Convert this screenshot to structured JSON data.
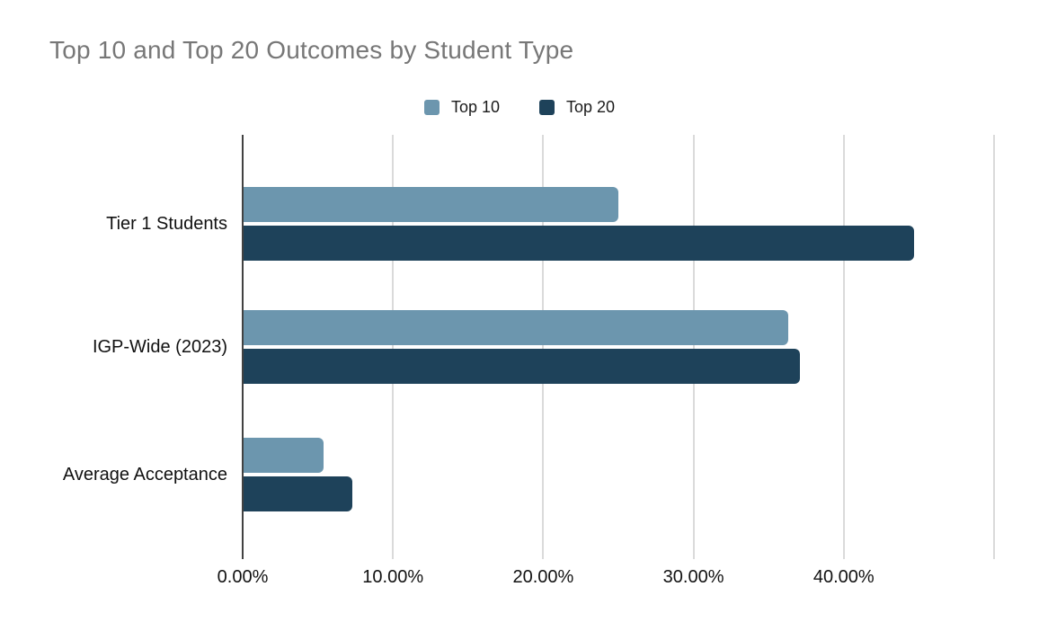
{
  "title": "Top 10 and Top 20 Outcomes by Student Type",
  "chart_data": {
    "type": "bar",
    "orientation": "horizontal",
    "title": "Top 10 and Top 20 Outcomes by Student Type",
    "categories": [
      "Tier 1 Students",
      "IGP-Wide (2023)",
      "Average Acceptance"
    ],
    "series": [
      {
        "name": "Top 10",
        "color": "#6c96ae",
        "values": [
          25.0,
          36.3,
          5.4
        ]
      },
      {
        "name": "Top 20",
        "color": "#1e425a",
        "values": [
          44.7,
          37.1,
          7.3
        ]
      }
    ],
    "value_unit": "%",
    "xlabel": "",
    "ylabel": "",
    "x_axis": {
      "min": 0,
      "max": 50,
      "ticks": [
        {
          "value": 0,
          "label": "0.00%"
        },
        {
          "value": 10,
          "label": "10.00%"
        },
        {
          "value": 20,
          "label": "20.00%"
        },
        {
          "value": 30,
          "label": "30.00%"
        },
        {
          "value": 40,
          "label": "40.00%"
        },
        {
          "value": 50,
          "label": ""
        }
      ]
    },
    "grid": true,
    "legend_position": "top-center",
    "colors": {
      "title_text": "#777777",
      "axis_line": "#424242",
      "gridline": "#dadada",
      "label_text": "#111111",
      "background": "#ffffff"
    }
  }
}
